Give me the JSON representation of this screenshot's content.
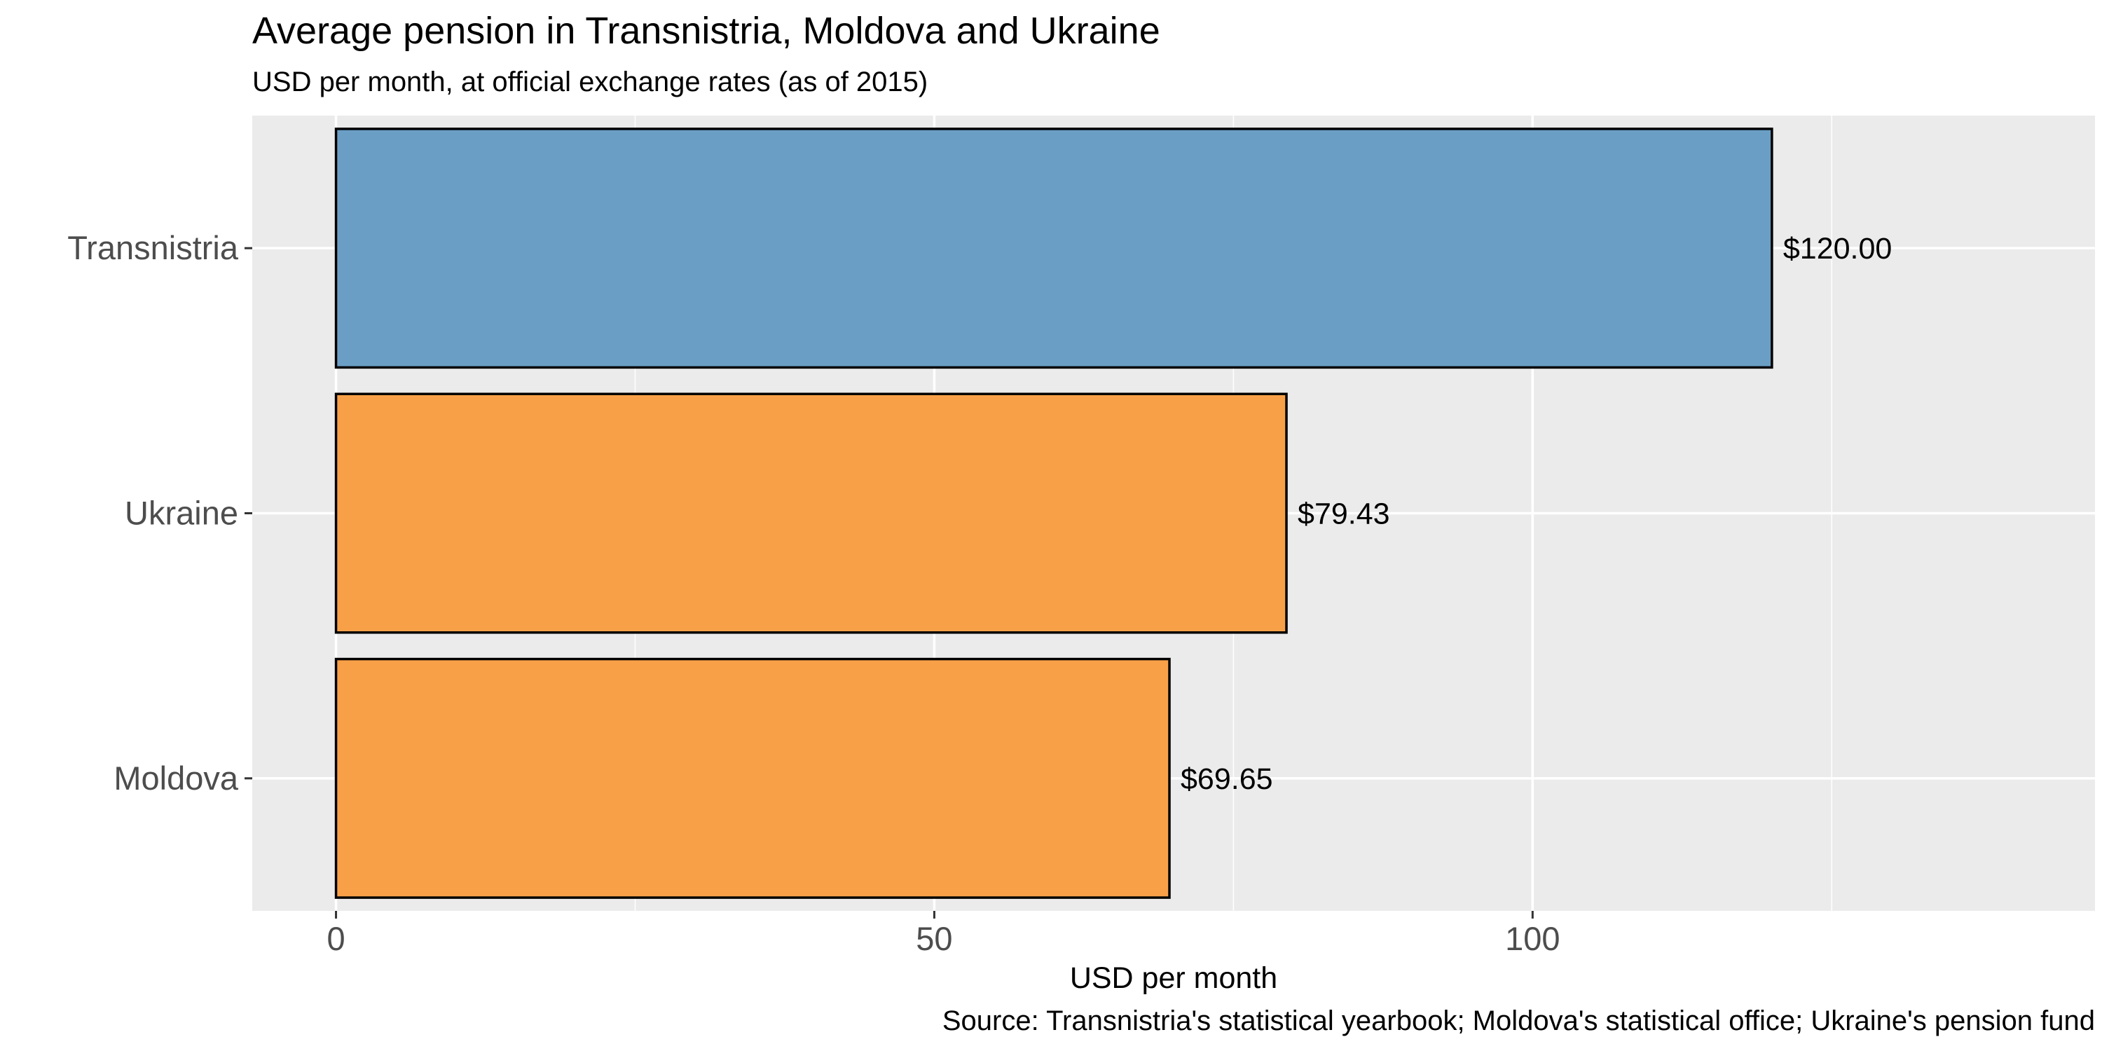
{
  "chart_data": {
    "type": "bar",
    "orientation": "horizontal",
    "title": "Average pension in Transnistria, Moldova and Ukraine",
    "subtitle": "USD per month, at official exchange rates (as of 2015)",
    "xlabel": "USD per month",
    "ylabel": "",
    "caption": "Source: Transnistria's statistical yearbook; Moldova's statistical office; Ukraine's pension fund",
    "xlim": [
      -7,
      147
    ],
    "x_ticks": [
      0,
      50,
      100
    ],
    "x_tick_labels": [
      "0",
      "50",
      "100"
    ],
    "x_minor_ticks": [
      25,
      75,
      125
    ],
    "grid": true,
    "legend": "none",
    "bars": [
      {
        "category": "Transnistria",
        "value": 120.0,
        "label": "$120.00",
        "color": "#6a9ec5"
      },
      {
        "category": "Ukraine",
        "value": 79.43,
        "label": "$79.43",
        "color": "#f8a048"
      },
      {
        "category": "Moldova",
        "value": 69.65,
        "label": "$69.65",
        "color": "#f8a048"
      }
    ],
    "panel_background": "#ebebeb",
    "gridline_color": "#ffffff",
    "bar_outline_color": "#000000"
  }
}
